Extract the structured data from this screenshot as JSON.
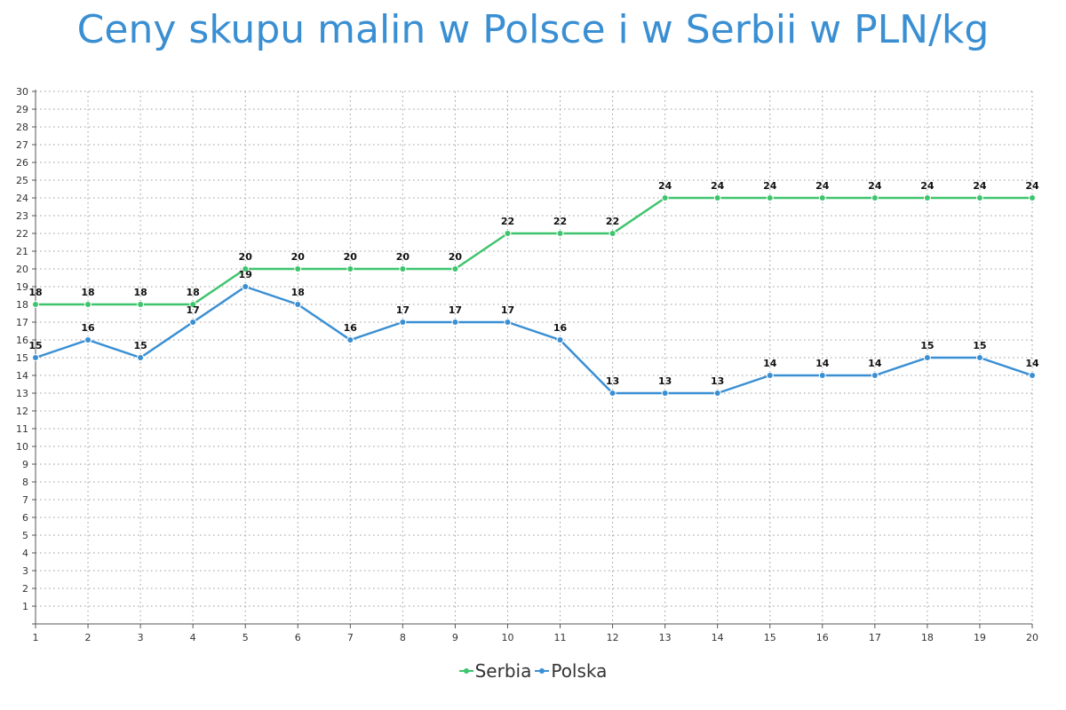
{
  "title": "Ceny skupu malin w Polsce i w Serbii w PLN/kg",
  "chart_data": {
    "type": "line",
    "title": "Ceny skupu malin w Polsce i w Serbii w PLN/kg",
    "xlabel": "",
    "ylabel": "",
    "x": [
      1,
      2,
      3,
      4,
      5,
      6,
      7,
      8,
      9,
      10,
      11,
      12,
      13,
      14,
      15,
      16,
      17,
      18,
      19,
      20
    ],
    "ylim": [
      0,
      30
    ],
    "yticks": [
      1,
      2,
      3,
      4,
      5,
      6,
      7,
      8,
      9,
      10,
      11,
      12,
      13,
      14,
      15,
      16,
      17,
      18,
      19,
      20,
      21,
      22,
      23,
      24,
      25,
      26,
      27,
      28,
      29,
      30
    ],
    "grid": true,
    "legend_position": "bottom",
    "series": [
      {
        "name": "Serbia",
        "color": "#3ec46d",
        "values": [
          18,
          18,
          18,
          18,
          20,
          20,
          20,
          20,
          20,
          22,
          22,
          22,
          24,
          24,
          24,
          24,
          24,
          24,
          24,
          24
        ]
      },
      {
        "name": "Polska",
        "color": "#3a8fd3",
        "values": [
          15,
          16,
          15,
          17,
          19,
          18,
          16,
          17,
          17,
          17,
          16,
          13,
          13,
          13,
          14,
          14,
          14,
          15,
          15,
          14
        ]
      }
    ]
  }
}
